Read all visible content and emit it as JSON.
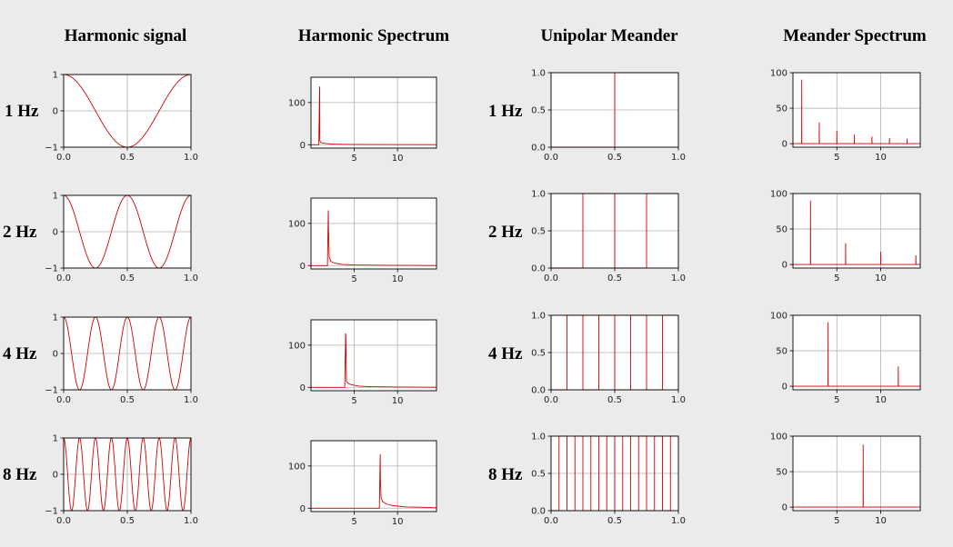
{
  "columns": [
    "Harmonic signal",
    "Harmonic Spectrum",
    "Unipolar Meander",
    "Meander Spectrum"
  ],
  "rows": [
    "1 Hz",
    "2 Hz",
    "4 Hz",
    "8 Hz"
  ],
  "style": {
    "line_color": "#d00000",
    "grid_color": "#b0b0b0",
    "background": "#ebebeb",
    "axes_background": "#ffffff"
  },
  "chart_data": [
    {
      "id": "harmonic-1hz",
      "type": "line",
      "kind": "harmonic",
      "freq": 1,
      "xlim": [
        0,
        1
      ],
      "ylim": [
        -1,
        1
      ],
      "xticks": [
        0.0,
        0.5,
        1.0
      ],
      "xtick_labels": [
        "0.0",
        "0.5",
        "1.0"
      ],
      "yticks": [
        -1,
        0,
        1
      ],
      "ytick_labels": [
        "−1",
        "0",
        "1"
      ],
      "series": [
        {
          "x": [
            0,
            0.125,
            0.25,
            0.375,
            0.5,
            0.625,
            0.75,
            0.875,
            1.0
          ],
          "y": [
            1,
            0.707,
            0,
            -0.707,
            -1,
            -0.707,
            0,
            0.707,
            1
          ]
        }
      ]
    },
    {
      "id": "harmonic-2hz",
      "type": "line",
      "kind": "harmonic",
      "freq": 2,
      "xlim": [
        0,
        1
      ],
      "ylim": [
        -1,
        1
      ],
      "xticks": [
        0.0,
        0.5,
        1.0
      ],
      "xtick_labels": [
        "0.0",
        "0.5",
        "1.0"
      ],
      "yticks": [
        -1,
        0,
        1
      ],
      "ytick_labels": [
        "−1",
        "0",
        "1"
      ],
      "series": [
        {
          "x": [
            0,
            0.125,
            0.25,
            0.375,
            0.5,
            0.625,
            0.75,
            0.875,
            1.0
          ],
          "y": [
            1,
            0,
            -1,
            0,
            1,
            0,
            -1,
            0,
            1
          ]
        }
      ]
    },
    {
      "id": "harmonic-4hz",
      "type": "line",
      "kind": "harmonic",
      "freq": 4,
      "xlim": [
        0,
        1
      ],
      "ylim": [
        -1,
        1
      ],
      "xticks": [
        0.0,
        0.5,
        1.0
      ],
      "xtick_labels": [
        "0.0",
        "0.5",
        "1.0"
      ],
      "yticks": [
        -1,
        0,
        1
      ],
      "ytick_labels": [
        "−1",
        "0",
        "1"
      ],
      "series": [
        {
          "x": [
            0,
            0.125,
            0.25,
            0.375,
            0.5,
            0.625,
            0.75,
            0.875,
            1.0
          ],
          "y": [
            1,
            -1,
            1,
            -1,
            1,
            -1,
            1,
            -1,
            1
          ]
        }
      ]
    },
    {
      "id": "harmonic-8hz",
      "type": "line",
      "kind": "harmonic",
      "freq": 8,
      "xlim": [
        0,
        1
      ],
      "ylim": [
        -1,
        1
      ],
      "xticks": [
        0.0,
        0.5,
        1.0
      ],
      "xtick_labels": [
        "0.0",
        "0.5",
        "1.0"
      ],
      "yticks": [
        -1,
        0,
        1
      ],
      "ytick_labels": [
        "−1",
        "0",
        "1"
      ],
      "series": [
        {
          "x": [
            0,
            0.0625,
            0.125,
            0.1875,
            0.25,
            0.3125,
            0.375,
            0.4375,
            0.5,
            0.5625,
            0.625,
            0.6875,
            0.75,
            0.8125,
            0.875,
            0.9375,
            1.0
          ],
          "y": [
            1,
            -1,
            1,
            -1,
            1,
            -1,
            1,
            -1,
            1,
            -1,
            1,
            -1,
            1,
            -1,
            1,
            -1,
            1
          ]
        }
      ]
    },
    {
      "id": "harm-spectrum-1hz",
      "type": "line",
      "kind": "spectrum",
      "xlim": [
        0,
        14.5
      ],
      "ylim": [
        -8,
        160
      ],
      "xticks": [
        5,
        10
      ],
      "xtick_labels": [
        "5",
        "10"
      ],
      "yticks": [
        0,
        100
      ],
      "ytick_labels": [
        "0",
        "100"
      ],
      "series": [
        {
          "x": [
            0,
            0.9,
            1,
            1.02,
            1.1,
            1.3,
            1.7,
            2.5,
            4,
            7,
            14.5
          ],
          "y": [
            0,
            0,
            138,
            10,
            6,
            4,
            3,
            1.5,
            0.8,
            0.4,
            0.2
          ]
        }
      ]
    },
    {
      "id": "harm-spectrum-2hz",
      "type": "line",
      "kind": "spectrum",
      "xlim": [
        0,
        14.5
      ],
      "ylim": [
        -8,
        160
      ],
      "xticks": [
        5,
        10
      ],
      "xtick_labels": [
        "5",
        "10"
      ],
      "yticks": [
        0,
        100
      ],
      "ytick_labels": [
        "0",
        "100"
      ],
      "series": [
        {
          "x": [
            0,
            1.9,
            2,
            2.02,
            2.1,
            2.3,
            2.7,
            3.5,
            5,
            8,
            14.5
          ],
          "y": [
            0,
            0,
            131,
            90,
            20,
            10,
            6,
            3,
            1.5,
            0.8,
            0.3
          ]
        }
      ]
    },
    {
      "id": "harm-spectrum-4hz",
      "type": "line",
      "kind": "spectrum",
      "xlim": [
        0,
        14.5
      ],
      "ylim": [
        -8,
        160
      ],
      "xticks": [
        5,
        10
      ],
      "xtick_labels": [
        "5",
        "10"
      ],
      "yticks": [
        0,
        100
      ],
      "ytick_labels": [
        "0",
        "100"
      ],
      "series": [
        {
          "x": [
            0,
            3.9,
            4,
            4.02,
            4.1,
            4.3,
            4.7,
            5.5,
            7,
            10,
            14.5
          ],
          "y": [
            0,
            0,
            128,
            125,
            15,
            9,
            6,
            3,
            1.5,
            0.8,
            0.3
          ]
        }
      ]
    },
    {
      "id": "harm-spectrum-8hz",
      "type": "line",
      "kind": "spectrum",
      "xlim": [
        0,
        14.5
      ],
      "ylim": [
        -8,
        160
      ],
      "xticks": [
        5,
        10
      ],
      "xtick_labels": [
        "5",
        "10"
      ],
      "yticks": [
        0,
        100
      ],
      "ytick_labels": [
        "0",
        "100"
      ],
      "series": [
        {
          "x": [
            0,
            7.9,
            8,
            8.02,
            8.1,
            8.3,
            8.7,
            9.5,
            11,
            13,
            14.5
          ],
          "y": [
            0,
            0,
            128,
            70,
            25,
            15,
            10,
            6,
            3,
            2,
            1
          ]
        }
      ]
    },
    {
      "id": "meander-1hz",
      "type": "line",
      "kind": "meander",
      "xlim": [
        0,
        1
      ],
      "ylim": [
        0,
        1
      ],
      "xticks": [
        0.0,
        0.5,
        1.0
      ],
      "xtick_labels": [
        "0.0",
        "0.5",
        "1.0"
      ],
      "yticks": [
        0,
        0.5,
        1
      ],
      "ytick_labels": [
        "0.0",
        "0.5",
        "1.0"
      ],
      "series": [
        {
          "x": [
            0,
            0.5,
            0.5,
            1.0
          ],
          "y": [
            0,
            0,
            1,
            1
          ]
        }
      ]
    },
    {
      "id": "meander-2hz",
      "type": "line",
      "kind": "meander",
      "xlim": [
        0,
        1
      ],
      "ylim": [
        0,
        1
      ],
      "xticks": [
        0.0,
        0.5,
        1.0
      ],
      "xtick_labels": [
        "0.0",
        "0.5",
        "1.0"
      ],
      "yticks": [
        0,
        0.5,
        1
      ],
      "ytick_labels": [
        "0.0",
        "0.5",
        "1.0"
      ],
      "series": [
        {
          "x": [
            0,
            0.25,
            0.25,
            0.5,
            0.5,
            0.75,
            0.75,
            1.0
          ],
          "y": [
            0,
            0,
            1,
            1,
            0,
            0,
            1,
            1
          ]
        }
      ]
    },
    {
      "id": "meander-4hz",
      "type": "line",
      "kind": "meander",
      "xlim": [
        0,
        1
      ],
      "ylim": [
        0,
        1
      ],
      "xticks": [
        0.0,
        0.5,
        1.0
      ],
      "xtick_labels": [
        "0.0",
        "0.5",
        "1.0"
      ],
      "yticks": [
        0,
        0.5,
        1
      ],
      "ytick_labels": [
        "0.0",
        "0.5",
        "1.0"
      ],
      "series": [
        {
          "x": [
            0,
            0.125,
            0.125,
            0.25,
            0.25,
            0.375,
            0.375,
            0.5,
            0.5,
            0.625,
            0.625,
            0.75,
            0.75,
            0.875,
            0.875,
            1.0
          ],
          "y": [
            0,
            0,
            1,
            1,
            0,
            0,
            1,
            1,
            0,
            0,
            1,
            1,
            0,
            0,
            1,
            1
          ]
        }
      ]
    },
    {
      "id": "meander-8hz",
      "type": "line",
      "kind": "meander",
      "xlim": [
        0,
        1
      ],
      "ylim": [
        0,
        1
      ],
      "xticks": [
        0.0,
        0.5,
        1.0
      ],
      "xtick_labels": [
        "0.0",
        "0.5",
        "1.0"
      ],
      "yticks": [
        0,
        0.5,
        1
      ],
      "ytick_labels": [
        "0.0",
        "0.5",
        "1.0"
      ],
      "series": [
        {
          "x": [
            0,
            0.0625,
            0.0625,
            0.125,
            0.125,
            0.1875,
            0.1875,
            0.25,
            0.25,
            0.3125,
            0.3125,
            0.375,
            0.375,
            0.4375,
            0.4375,
            0.5,
            0.5,
            0.5625,
            0.5625,
            0.625,
            0.625,
            0.6875,
            0.6875,
            0.75,
            0.75,
            0.8125,
            0.8125,
            0.875,
            0.875,
            0.9375,
            0.9375,
            1.0
          ],
          "y": [
            0,
            0,
            1,
            1,
            0,
            0,
            1,
            1,
            0,
            0,
            1,
            1,
            0,
            0,
            1,
            1,
            0,
            0,
            1,
            1,
            0,
            0,
            1,
            1,
            0,
            0,
            1,
            1,
            0,
            0,
            1,
            1
          ]
        }
      ]
    },
    {
      "id": "meander-spectrum-1hz",
      "type": "line",
      "kind": "spectrum",
      "xlim": [
        0,
        14.5
      ],
      "ylim": [
        -5,
        100
      ],
      "xticks": [
        5,
        10
      ],
      "xtick_labels": [
        "5",
        "10"
      ],
      "yticks": [
        0,
        50,
        100
      ],
      "ytick_labels": [
        "0",
        "50",
        "100"
      ],
      "series": [
        {
          "x": [
            0,
            0.99,
            1,
            1.01,
            2.99,
            3,
            3.01,
            4.99,
            5,
            5.01,
            6.99,
            7,
            7.01,
            8.99,
            9,
            9.01,
            10.99,
            11,
            11.01,
            12.99,
            13,
            13.01,
            14.5
          ],
          "y": [
            0,
            0,
            90,
            0,
            0,
            30,
            0,
            0,
            18,
            0,
            0,
            13,
            0,
            0,
            10,
            0,
            0,
            8,
            0,
            0,
            7,
            0,
            0
          ]
        }
      ]
    },
    {
      "id": "meander-spectrum-2hz",
      "type": "line",
      "kind": "spectrum",
      "xlim": [
        0,
        14.5
      ],
      "ylim": [
        -5,
        100
      ],
      "xticks": [
        5,
        10
      ],
      "xtick_labels": [
        "5",
        "10"
      ],
      "yticks": [
        0,
        50,
        100
      ],
      "ytick_labels": [
        "0",
        "50",
        "100"
      ],
      "series": [
        {
          "x": [
            0,
            1.99,
            2,
            2.01,
            5.99,
            6,
            6.01,
            9.99,
            10,
            10.01,
            13.99,
            14,
            14.01,
            14.5
          ],
          "y": [
            0,
            0,
            90,
            0,
            0,
            30,
            0,
            0,
            18,
            0,
            0,
            13,
            0,
            0
          ]
        }
      ]
    },
    {
      "id": "meander-spectrum-4hz",
      "type": "line",
      "kind": "spectrum",
      "xlim": [
        0,
        14.5
      ],
      "ylim": [
        -5,
        100
      ],
      "xticks": [
        5,
        10
      ],
      "xtick_labels": [
        "5",
        "10"
      ],
      "yticks": [
        0,
        50,
        100
      ],
      "ytick_labels": [
        "0",
        "50",
        "100"
      ],
      "series": [
        {
          "x": [
            0,
            3.99,
            4,
            4.01,
            11.99,
            12,
            12.01,
            14.5
          ],
          "y": [
            0,
            0,
            90,
            0,
            0,
            28,
            0,
            0
          ]
        }
      ]
    },
    {
      "id": "meander-spectrum-8hz",
      "type": "line",
      "kind": "spectrum",
      "xlim": [
        0,
        14.5
      ],
      "ylim": [
        -5,
        100
      ],
      "xticks": [
        5,
        10
      ],
      "xtick_labels": [
        "5",
        "10"
      ],
      "yticks": [
        0,
        50,
        100
      ],
      "ytick_labels": [
        "0",
        "50",
        "100"
      ],
      "series": [
        {
          "x": [
            0,
            7.99,
            8,
            8.01,
            14.5
          ],
          "y": [
            0,
            0,
            88,
            0,
            0
          ]
        }
      ]
    }
  ]
}
